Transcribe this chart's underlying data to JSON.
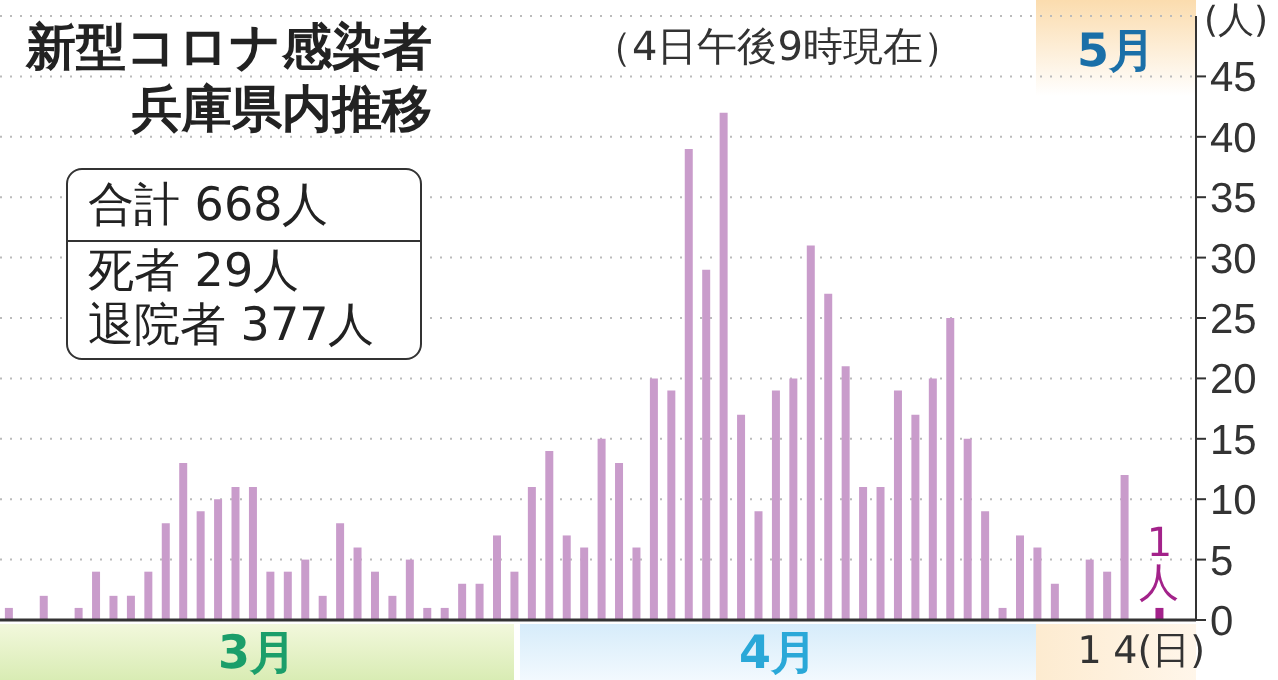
{
  "chart_data": {
    "type": "bar",
    "title": "新型コロナ感染者兵庫県内推移",
    "subtitle": "（4日午後9時現在）",
    "ylabel": "(人)",
    "categories": [
      null,
      null,
      null,
      null,
      null,
      null,
      null,
      null,
      null,
      null,
      null,
      null,
      null,
      null,
      null,
      null,
      null,
      null,
      null,
      null,
      null,
      null,
      null,
      null,
      null,
      null,
      null,
      null,
      null,
      null,
      null,
      null,
      null,
      null,
      null,
      null,
      null,
      null,
      null,
      null,
      null,
      null,
      null,
      null,
      null,
      null,
      null,
      null,
      null,
      null,
      null,
      null,
      null,
      null,
      null,
      null,
      null,
      null,
      null,
      null,
      null,
      null,
      "1",
      null,
      null,
      null,
      "4(日)"
    ],
    "values": [
      1,
      0,
      2,
      0,
      1,
      4,
      2,
      2,
      4,
      8,
      13,
      9,
      10,
      11,
      11,
      4,
      4,
      5,
      2,
      8,
      6,
      4,
      2,
      5,
      1,
      1,
      3,
      3,
      7,
      4,
      11,
      14,
      7,
      6,
      15,
      13,
      6,
      20,
      19,
      39,
      29,
      42,
      17,
      9,
      19,
      20,
      31,
      27,
      21,
      11,
      11,
      19,
      17,
      20,
      25,
      15,
      9,
      1,
      7,
      6,
      3,
      0,
      5,
      4,
      12,
      null,
      1
    ],
    "colors": [
      "#c99ccb",
      "#c99ccb",
      "#c99ccb",
      "#c99ccb",
      "#c99ccb",
      "#c99ccb",
      "#c99ccb",
      "#c99ccb",
      "#c99ccb",
      "#c99ccb",
      "#c99ccb",
      "#c99ccb",
      "#c99ccb",
      "#c99ccb",
      "#c99ccb",
      "#c99ccb",
      "#c99ccb",
      "#c99ccb",
      "#c99ccb",
      "#c99ccb",
      "#c99ccb",
      "#c99ccb",
      "#c99ccb",
      "#c99ccb",
      "#c99ccb",
      "#c99ccb",
      "#c99ccb",
      "#c99ccb",
      "#c99ccb",
      "#c99ccb",
      "#c99ccb",
      "#c99ccb",
      "#c99ccb",
      "#c99ccb",
      "#c99ccb",
      "#c99ccb",
      "#c99ccb",
      "#c99ccb",
      "#c99ccb",
      "#c99ccb",
      "#c99ccb",
      "#c99ccb",
      "#c99ccb",
      "#c99ccb",
      "#c99ccb",
      "#c99ccb",
      "#c99ccb",
      "#c99ccb",
      "#c99ccb",
      "#c99ccb",
      "#c99ccb",
      "#c99ccb",
      "#c99ccb",
      "#c99ccb",
      "#c99ccb",
      "#c99ccb",
      "#c99ccb",
      "#c99ccb",
      "#c99ccb",
      "#c99ccb",
      "#c99ccb",
      "#c99ccb",
      "#c99ccb",
      "#c99ccb",
      "#c99ccb",
      "#c99ccb",
      "#a3228a"
    ],
    "value_labels": [
      null,
      null,
      null,
      null,
      null,
      null,
      null,
      null,
      null,
      null,
      null,
      null,
      null,
      null,
      null,
      null,
      null,
      null,
      null,
      null,
      null,
      null,
      null,
      null,
      null,
      null,
      null,
      null,
      null,
      null,
      null,
      null,
      null,
      null,
      null,
      null,
      null,
      null,
      null,
      null,
      null,
      null,
      null,
      null,
      null,
      null,
      null,
      null,
      null,
      null,
      null,
      null,
      null,
      null,
      null,
      null,
      null,
      null,
      null,
      null,
      null,
      null,
      null,
      null,
      null,
      null,
      "1人"
    ],
    "ylim": [
      0,
      50
    ],
    "yticks": [
      0,
      5,
      10,
      15,
      20,
      25,
      30,
      35,
      40,
      45
    ],
    "grid": "y",
    "annotations": [
      "合計 668人",
      "死者 29人",
      "退院者 377人",
      "3月",
      "4月",
      "5月"
    ]
  }
}
